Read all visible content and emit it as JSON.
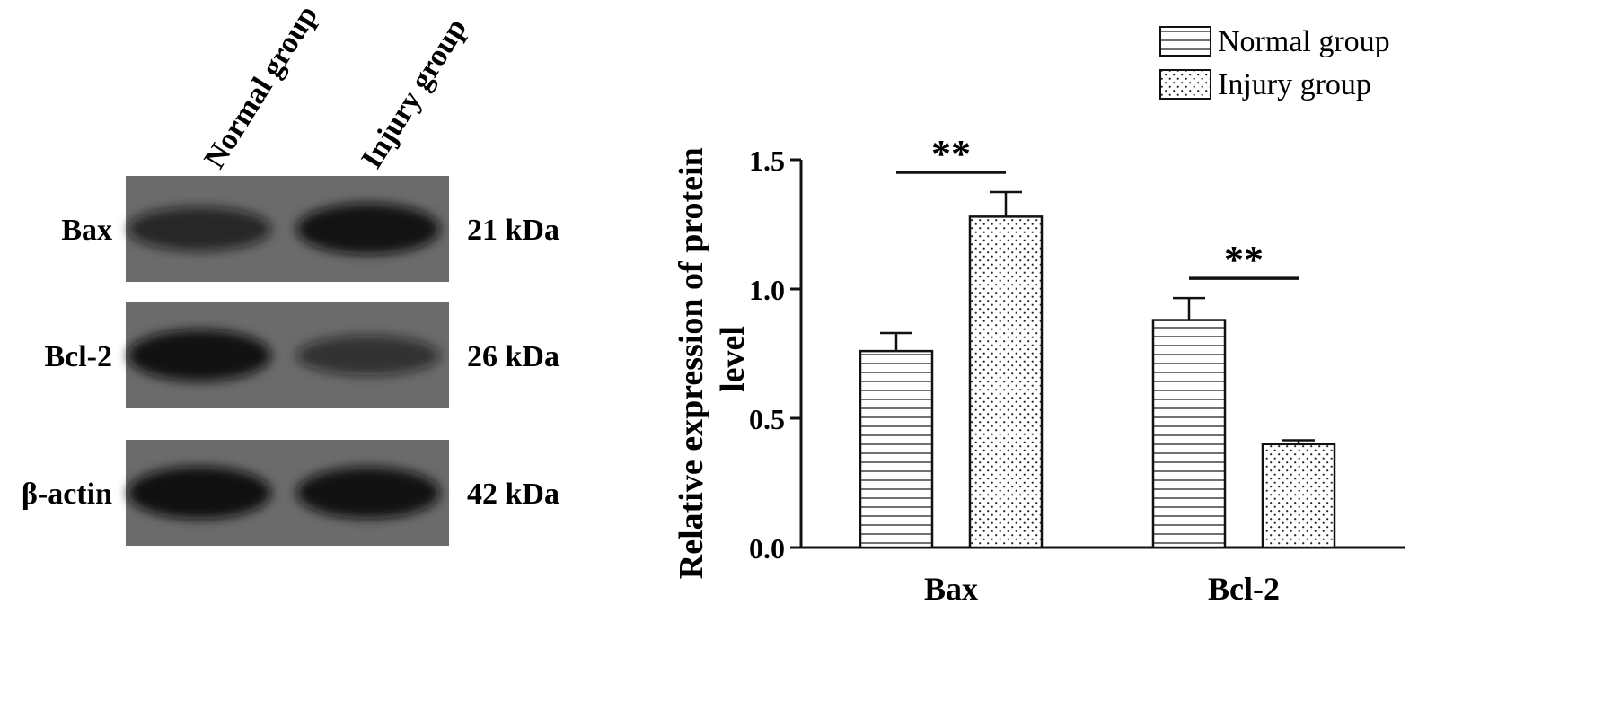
{
  "blot": {
    "lanes": [
      "Normal group",
      "Injury group"
    ],
    "bands": [
      {
        "protein": "Bax",
        "size": "21 kDa",
        "intensity": [
          0.62,
          0.9
        ]
      },
      {
        "protein": "Bcl-2",
        "size": "26 kDa",
        "intensity": [
          0.92,
          0.45
        ]
      },
      {
        "protein": "β-actin",
        "size": "42 kDa",
        "intensity": [
          0.95,
          0.92
        ]
      }
    ],
    "colors": {
      "membrane": "#6b6b6b",
      "band": "#0f0f0f"
    }
  },
  "chart_data": {
    "type": "bar",
    "categories": [
      "Bax",
      "Bcl-2"
    ],
    "series": [
      {
        "name": "Normal group",
        "values": [
          0.76,
          0.88
        ],
        "errors": [
          0.07,
          0.085
        ],
        "pattern": "horizontal-lines"
      },
      {
        "name": "Injury group",
        "values": [
          1.28,
          0.4
        ],
        "errors": [
          0.095,
          0.015
        ],
        "pattern": "dots"
      }
    ],
    "ylabel": "Relative expression of protein level",
    "ylim": [
      0,
      1.5
    ],
    "yticks": [
      "0.0",
      "0.5",
      "1.0",
      "1.5"
    ],
    "significance": [
      {
        "category": "Bax",
        "label": "**"
      },
      {
        "category": "Bcl-2",
        "label": "**"
      }
    ],
    "legend_placement": "top-right",
    "grid": false
  }
}
